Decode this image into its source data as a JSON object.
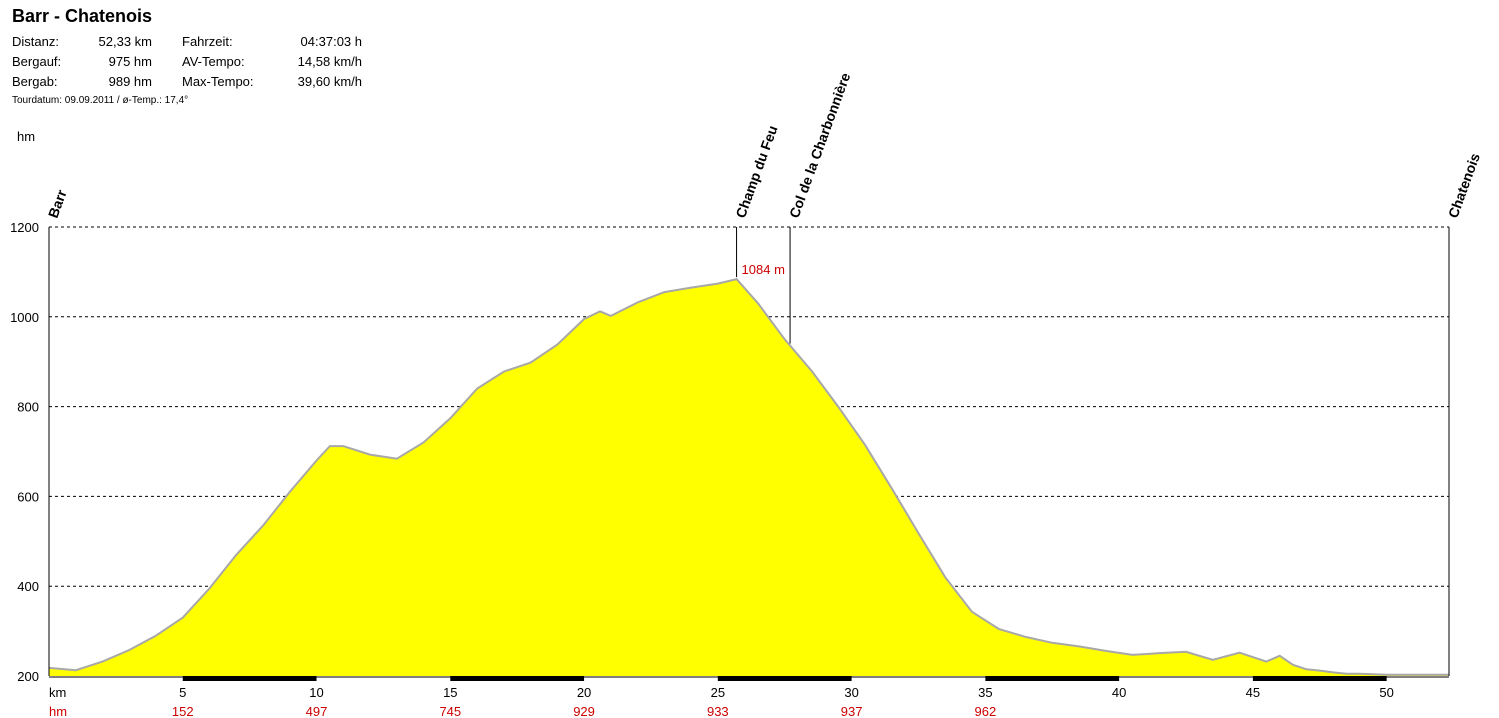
{
  "header": {
    "title": "Barr - Chatenois",
    "distanz_label": "Distanz:",
    "distanz_value": "52,33 km",
    "bergauf_label": "Bergauf:",
    "bergauf_value": "975 hm",
    "bergab_label": "Bergab:",
    "bergab_value": "989 hm",
    "fahrzeit_label": "Fahrzeit:",
    "fahrzeit_value": "04:37:03 h",
    "avtempo_label": "AV-Tempo:",
    "avtempo_value": "14,58 km/h",
    "maxtempo_label": "Max-Tempo:",
    "maxtempo_value": "39,60 km/h",
    "tour_line": "Tourdatum: 09.09.2011  /  ø-Temp.: 17,4°"
  },
  "chart_data": {
    "type": "area",
    "title": "Barr - Chatenois",
    "ylabel": "hm",
    "xlabel": "km",
    "row2_label": "hm",
    "xlim": [
      0,
      52.33
    ],
    "ylim": [
      200,
      1200
    ],
    "yticks": [
      200,
      400,
      600,
      800,
      1000,
      1200
    ],
    "xticks": [
      5,
      10,
      15,
      20,
      25,
      30,
      35,
      40,
      45,
      50
    ],
    "grid": true,
    "profile": {
      "x": [
        0,
        1,
        2,
        3,
        4,
        5,
        6,
        7,
        8,
        9,
        10,
        10.5,
        11,
        12,
        13,
        14,
        15,
        16,
        17,
        18,
        19,
        20,
        20.6,
        21,
        22,
        23,
        24,
        25,
        25.7,
        26.5,
        27.5,
        28.5,
        29.5,
        30.5,
        31.5,
        32.5,
        33.5,
        34.5,
        35.5,
        36.5,
        37.5,
        38.5,
        39.5,
        40.5,
        41.5,
        42.5,
        43.5,
        44.5,
        45.5,
        46,
        46.5,
        47,
        47.5,
        48,
        48.5,
        49,
        49.5,
        50,
        51,
        52.33
      ],
      "y": [
        218,
        213,
        232,
        258,
        290,
        330,
        395,
        470,
        535,
        610,
        680,
        712,
        712,
        693,
        684,
        720,
        774,
        840,
        878,
        898,
        938,
        995,
        1012,
        1002,
        1032,
        1055,
        1065,
        1074,
        1084,
        1030,
        950,
        880,
        800,
        715,
        618,
        518,
        420,
        343,
        305,
        287,
        274,
        266,
        256,
        247,
        251,
        254,
        236,
        252,
        232,
        245,
        225,
        215,
        212,
        208,
        205,
        205,
        204,
        203,
        203,
        203
      ]
    },
    "peak_label": "1084 m",
    "markers": [
      {
        "name": "Barr",
        "km": 0
      },
      {
        "name": "Champ du Feu",
        "km": 25.7
      },
      {
        "name": "Col de la Charbonnière",
        "km": 27.7
      },
      {
        "name": "Chatenois",
        "km": 52.33
      }
    ],
    "row2_values": [
      {
        "km": 5,
        "value": "152"
      },
      {
        "km": 10,
        "value": "497"
      },
      {
        "km": 15,
        "value": "745"
      },
      {
        "km": 20,
        "value": "929"
      },
      {
        "km": 25,
        "value": "933"
      },
      {
        "km": 30,
        "value": "937"
      },
      {
        "km": 35,
        "value": "962"
      }
    ],
    "colors": {
      "fill": "#ffff00",
      "outline": "#a8a8a8",
      "accent": "#cc0000"
    }
  }
}
